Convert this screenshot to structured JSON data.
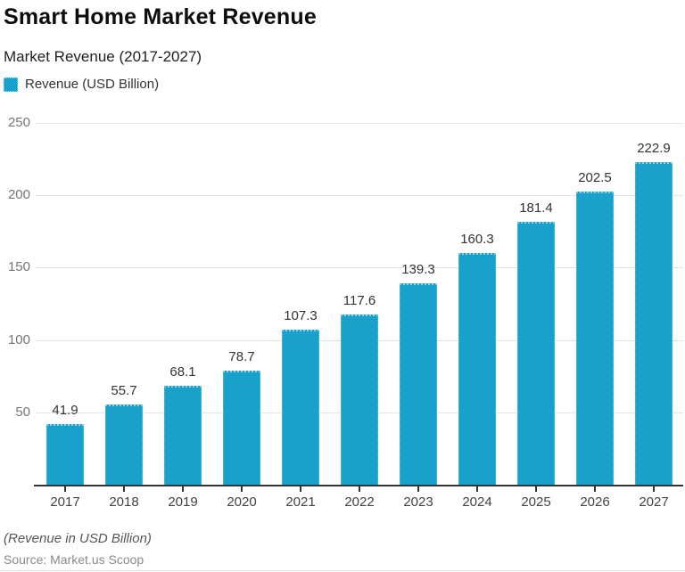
{
  "header": {
    "title": "Smart Home Market Revenue",
    "subtitle": "Market Revenue (2017-2027)"
  },
  "legend": {
    "label": "Revenue (USD Billion)",
    "swatch_color": "#18A1CB"
  },
  "footer": {
    "note": "(Revenue in USD Billion)",
    "source": "Source: Market.us Scoop"
  },
  "chart_data": {
    "type": "bar",
    "title": "Smart Home Market Revenue",
    "subtitle": "Market Revenue (2017-2027)",
    "legend_entries": [
      "Revenue (USD Billion)"
    ],
    "legend_position": "top-left",
    "categories": [
      "2017",
      "2018",
      "2019",
      "2020",
      "2021",
      "2022",
      "2023",
      "2024",
      "2025",
      "2026",
      "2027"
    ],
    "values": [
      41.9,
      55.7,
      68.1,
      78.7,
      107.3,
      117.6,
      139.3,
      160.3,
      181.4,
      202.5,
      222.9
    ],
    "xlabel": "",
    "ylabel": "",
    "ylim": [
      0,
      250
    ],
    "yticks": [
      50,
      100,
      150,
      200,
      250
    ],
    "grid": true,
    "value_labels": true,
    "bar_color": "#18A1CB",
    "note": "(Revenue in USD Billion)",
    "source": "Source: Market.us Scoop"
  }
}
